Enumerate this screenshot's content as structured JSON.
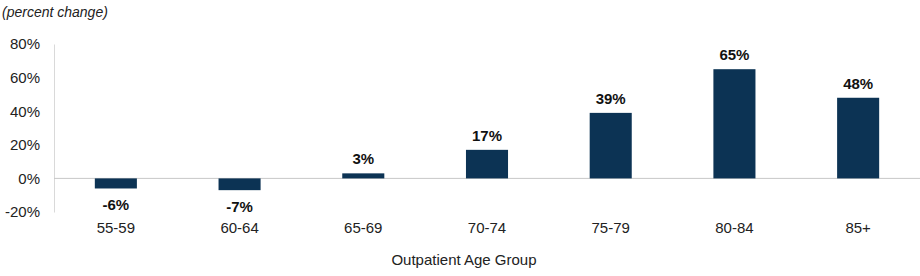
{
  "chart_data": {
    "type": "bar",
    "ylabel": "(percent change)",
    "xlabel": "Outpatient Age Group",
    "categories": [
      "55-59",
      "60-64",
      "65-69",
      "70-74",
      "75-79",
      "80-84",
      "85+"
    ],
    "values": [
      -6,
      -7,
      3,
      17,
      39,
      65,
      48
    ],
    "value_labels": [
      "-6%",
      "-7%",
      "3%",
      "17%",
      "39%",
      "65%",
      "48%"
    ],
    "color": "#0c3354",
    "ylim": [
      -20,
      80
    ],
    "yticks": [
      {
        "value": -20,
        "label": "-20%"
      },
      {
        "value": 0,
        "label": "0%"
      },
      {
        "value": 20,
        "label": "20%"
      },
      {
        "value": 40,
        "label": "40%"
      },
      {
        "value": 60,
        "label": "60%"
      },
      {
        "value": 80,
        "label": "80%"
      }
    ],
    "grid": false,
    "data_labels": true
  }
}
